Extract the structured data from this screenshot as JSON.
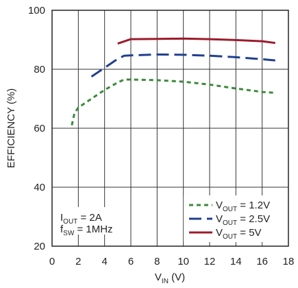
{
  "chart_data": {
    "type": "line",
    "title": "",
    "xlabel": {
      "main": "V",
      "sub": "IN",
      "unit": " (V)"
    },
    "ylabel": "EFFICIENCY (%)",
    "xlim": [
      0,
      18
    ],
    "ylim": [
      20,
      100
    ],
    "xticks": [
      "0",
      "2",
      "4",
      "6",
      "8",
      "10",
      "12",
      "14",
      "16",
      "18"
    ],
    "yticks": [
      "20",
      "40",
      "60",
      "80",
      "100"
    ],
    "grid": true,
    "legend_position": "bottom-right",
    "annotation": {
      "line1": {
        "main": "I",
        "sub": "OUT",
        "rest": " = 2A"
      },
      "line2": {
        "main": "f",
        "sub": "SW",
        "rest": " = 1MHz"
      }
    },
    "series": [
      {
        "label": {
          "main": "V",
          "sub": "OUT",
          "rest": " = 1.2V"
        },
        "color": "#3a8a3a",
        "dash": "6 5",
        "x": [
          1.5,
          1.7,
          2.0,
          3.0,
          4.0,
          5.0,
          5.5,
          6.0,
          8.0,
          10.0,
          12.0,
          14.0,
          16.0,
          17.0
        ],
        "y": [
          61,
          65,
          67,
          70,
          73,
          75.5,
          76.5,
          76.5,
          76.3,
          75.8,
          74.8,
          73.5,
          72.3,
          72.0
        ]
      },
      {
        "label": {
          "main": "V",
          "sub": "OUT",
          "rest": " = 2.5V"
        },
        "color": "#1f3f8f",
        "dash": "18 8",
        "x": [
          3.0,
          4.0,
          5.0,
          5.5,
          6.0,
          8.0,
          10.0,
          12.0,
          14.0,
          16.0,
          17.0
        ],
        "y": [
          77.5,
          80.5,
          83.5,
          84.6,
          84.7,
          85.0,
          84.9,
          84.6,
          84.1,
          83.4,
          83.0
        ]
      },
      {
        "label": {
          "main": "V",
          "sub": "OUT",
          "rest": " = 5V"
        },
        "color": "#9b1c2c",
        "dash": "",
        "x": [
          5.0,
          6.0,
          8.0,
          10.0,
          12.0,
          14.0,
          16.0,
          17.0
        ],
        "y": [
          88.7,
          90.2,
          90.3,
          90.4,
          90.2,
          89.9,
          89.5,
          88.9
        ]
      }
    ]
  }
}
